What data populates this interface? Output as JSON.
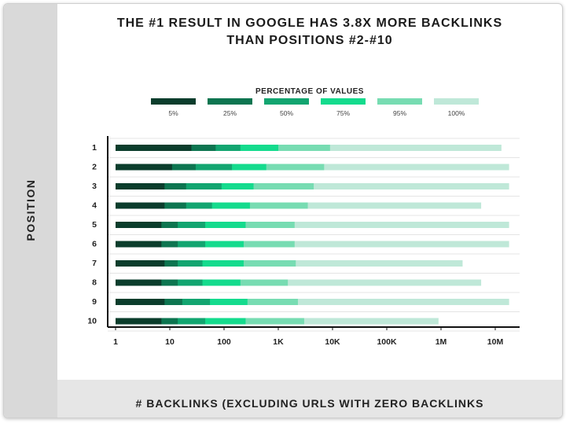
{
  "title_line1": "THE #1 RESULT IN GOOGLE HAS 3.8X MORE BACKLINKS",
  "title_line2": "THAN POSITIONS #2-#10",
  "colors": {
    "p5": "#0b3d2c",
    "p25": "#0d7550",
    "p50": "#12a570",
    "p75": "#14db8d",
    "p95": "#77dcb2",
    "p100": "#bfe8d8",
    "band": "#d9d9d9"
  },
  "chart_data": {
    "type": "bar",
    "title": "THE #1 RESULT IN GOOGLE HAS 3.8X MORE BACKLINKS THAN POSITIONS #2-#10",
    "xlabel": "# BACKLINKS (EXCLUDING URLS WITH ZERO BACKLINKS",
    "ylabel": "POSITION",
    "x_scale": "log",
    "xlim": [
      1,
      20000000
    ],
    "x_ticks": [
      "1",
      "10",
      "100",
      "1K",
      "10K",
      "100K",
      "1M",
      "10M"
    ],
    "legend_title": "PERCENTAGE OF VALUES",
    "legend": [
      "5%",
      "25%",
      "50%",
      "75%",
      "95%",
      "100%"
    ],
    "legend_placement": "top",
    "grid": true,
    "categories": [
      "1",
      "2",
      "3",
      "4",
      "5",
      "6",
      "7",
      "8",
      "9",
      "10"
    ],
    "series": [
      {
        "name": "5%",
        "values": [
          25,
          11,
          8,
          8,
          7,
          7,
          8,
          7,
          8,
          7
        ]
      },
      {
        "name": "25%",
        "values": [
          70,
          30,
          20,
          20,
          14,
          14,
          14,
          14,
          17,
          14
        ]
      },
      {
        "name": "50%",
        "values": [
          200,
          140,
          90,
          60,
          45,
          45,
          40,
          40,
          55,
          45
        ]
      },
      {
        "name": "75%",
        "values": [
          1000,
          600,
          350,
          300,
          250,
          230,
          230,
          200,
          270,
          250
        ]
      },
      {
        "name": "95%",
        "values": [
          9000,
          7000,
          4500,
          3500,
          2000,
          2000,
          2100,
          1500,
          2300,
          3000
        ]
      },
      {
        "name": "100%",
        "values": [
          13000000,
          18000000,
          18000000,
          5500000,
          18000000,
          18000000,
          2500000,
          5500000,
          18000000,
          900000
        ]
      }
    ]
  }
}
